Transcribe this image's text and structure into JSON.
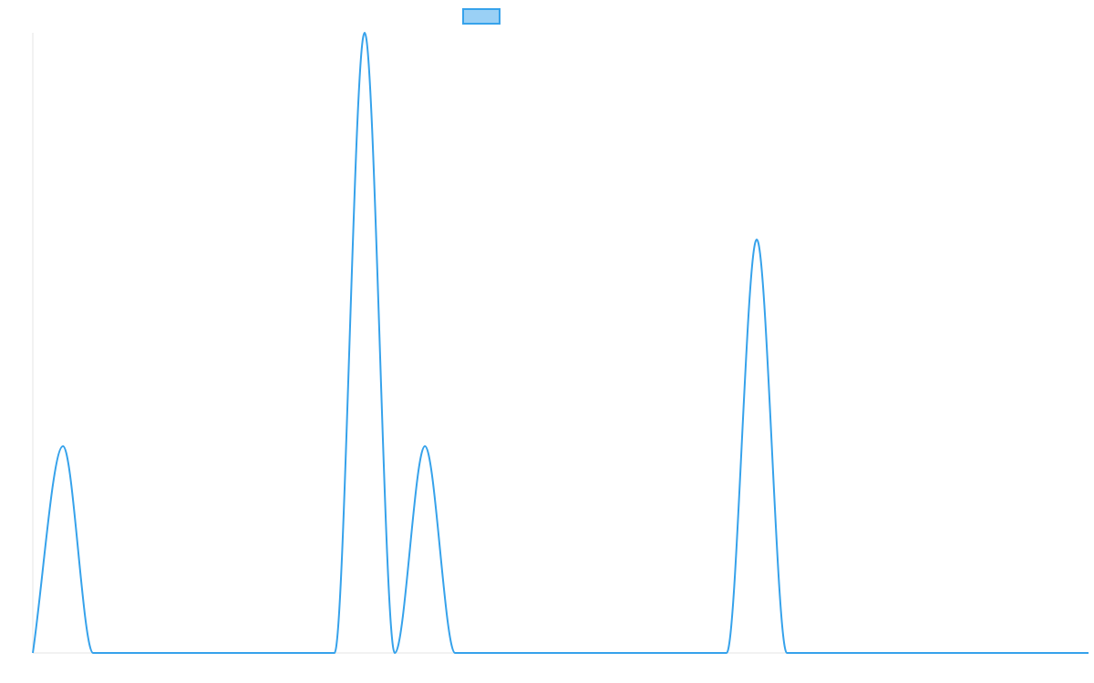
{
  "colors": {
    "series_line": "#36a2eb",
    "legend_fill": "#9ad0f5",
    "axis_line": "#e5e5e5",
    "background": "#ffffff"
  },
  "chart_data": {
    "type": "line",
    "title": "",
    "xlabel": "",
    "ylabel": "",
    "grid": false,
    "legend_position": "top",
    "x_tick_labels": [],
    "y_tick_labels": [],
    "xlim": [
      0,
      35
    ],
    "ylim": [
      0,
      3
    ],
    "x": [
      0,
      1,
      2,
      3,
      4,
      5,
      6,
      7,
      8,
      9,
      10,
      11,
      12,
      13,
      14,
      15,
      16,
      17,
      18,
      19,
      20,
      21,
      22,
      23,
      24,
      25,
      26,
      27,
      28,
      29,
      30,
      31,
      32,
      33,
      34,
      35
    ],
    "series": [
      {
        "name": "",
        "values": [
          0,
          1,
          0,
          0,
          0,
          0,
          0,
          0,
          0,
          0,
          0,
          3,
          0,
          1,
          0,
          0,
          0,
          0,
          0,
          0,
          0,
          0,
          0,
          0,
          2,
          0,
          0,
          0,
          0,
          0,
          0,
          0,
          0,
          0,
          0,
          0
        ]
      }
    ]
  }
}
